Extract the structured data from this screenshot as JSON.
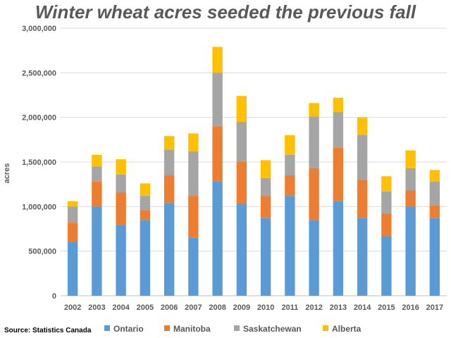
{
  "chart_data": {
    "type": "bar",
    "stacked": true,
    "title": "Winter wheat acres seeded the previous fall",
    "ylabel": "acres",
    "xlabel": "",
    "ylim": [
      0,
      3000000
    ],
    "yticks": [
      0,
      500000,
      1000000,
      1500000,
      2000000,
      2500000,
      3000000
    ],
    "ytick_labels": [
      "0",
      "500,000",
      "1,000,000",
      "1,500,000",
      "2,000,000",
      "2,500,000",
      "3,000,000"
    ],
    "grid": true,
    "legend_position": "bottom",
    "categories": [
      "2002",
      "2003",
      "2004",
      "2005",
      "2006",
      "2007",
      "2008",
      "2009",
      "2010",
      "2011",
      "2012",
      "2013",
      "2014",
      "2015",
      "2016",
      "2017"
    ],
    "series": [
      {
        "name": "Ontario",
        "color": "#5B9BD5",
        "values": [
          600000,
          1000000,
          790000,
          850000,
          1040000,
          650000,
          1280000,
          1030000,
          870000,
          1120000,
          850000,
          1060000,
          870000,
          670000,
          1000000,
          870000
        ]
      },
      {
        "name": "Manitoba",
        "color": "#ED7D31",
        "values": [
          220000,
          280000,
          370000,
          110000,
          310000,
          470000,
          620000,
          470000,
          250000,
          230000,
          580000,
          600000,
          430000,
          250000,
          180000,
          140000
        ]
      },
      {
        "name": "Saskatchewan",
        "color": "#A5A5A5",
        "values": [
          180000,
          170000,
          200000,
          160000,
          290000,
          500000,
          600000,
          450000,
          200000,
          230000,
          580000,
          400000,
          500000,
          250000,
          250000,
          270000
        ]
      },
      {
        "name": "Alberta",
        "color": "#FFC000",
        "values": [
          60000,
          130000,
          170000,
          140000,
          150000,
          200000,
          290000,
          290000,
          200000,
          220000,
          150000,
          160000,
          200000,
          170000,
          200000,
          130000
        ]
      }
    ]
  },
  "source": "Source: Statistics Canada"
}
